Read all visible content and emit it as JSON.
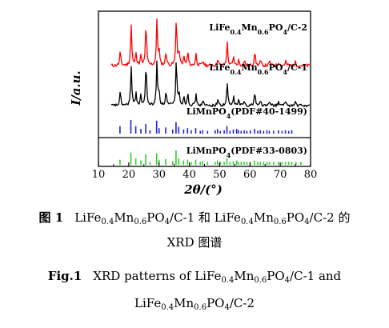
{
  "chart_data": {
    "type": "line",
    "xlabel": "2θ/(°)",
    "ylabel": "I/a.u.",
    "xlim": [
      10,
      80
    ],
    "xticks": [
      10,
      20,
      30,
      40,
      50,
      60,
      70,
      80
    ],
    "grid": false,
    "series": [
      {
        "name": "LiFe0.4Mn0.6PO4/C-2",
        "label_parts": [
          [
            "LiFe",
            ""
          ],
          [
            "0.4",
            "sub"
          ],
          [
            "Mn",
            ""
          ],
          [
            "0.6",
            "sub"
          ],
          [
            "PO",
            ""
          ],
          [
            "4",
            "sub"
          ],
          [
            "/C-2",
            ""
          ]
        ],
        "color": "#ff0000",
        "kind": "pattern",
        "peaks": [
          {
            "x": 17.2,
            "h": 0.28
          },
          {
            "x": 20.8,
            "h": 0.85
          },
          {
            "x": 22.4,
            "h": 0.28
          },
          {
            "x": 24.0,
            "h": 0.2
          },
          {
            "x": 25.7,
            "h": 0.9
          },
          {
            "x": 29.3,
            "h": 0.92
          },
          {
            "x": 30.0,
            "h": 0.3
          },
          {
            "x": 32.3,
            "h": 0.3
          },
          {
            "x": 35.7,
            "h": 1.0
          },
          {
            "x": 36.6,
            "h": 0.3
          },
          {
            "x": 38.2,
            "h": 0.18
          },
          {
            "x": 39.5,
            "h": 0.28
          },
          {
            "x": 42.2,
            "h": 0.24
          },
          {
            "x": 44.5,
            "h": 0.1
          },
          {
            "x": 49.4,
            "h": 0.14
          },
          {
            "x": 52.5,
            "h": 0.48
          },
          {
            "x": 54.6,
            "h": 0.18
          },
          {
            "x": 56.3,
            "h": 0.12
          },
          {
            "x": 58.2,
            "h": 0.1
          },
          {
            "x": 61.6,
            "h": 0.3
          },
          {
            "x": 63.5,
            "h": 0.1
          },
          {
            "x": 66.5,
            "h": 0.08
          },
          {
            "x": 69.5,
            "h": 0.08
          },
          {
            "x": 71.8,
            "h": 0.1
          },
          {
            "x": 75.0,
            "h": 0.07
          }
        ]
      },
      {
        "name": "LiFe0.4Mn0.6PO4/C-1",
        "label_parts": [
          [
            "LiFe",
            ""
          ],
          [
            "0.4",
            "sub"
          ],
          [
            "Mn",
            ""
          ],
          [
            "0.6",
            "sub"
          ],
          [
            "PO",
            ""
          ],
          [
            "4",
            "sub"
          ],
          [
            "/C-1",
            ""
          ]
        ],
        "color": "#000000",
        "kind": "pattern",
        "peaks": [
          {
            "x": 17.2,
            "h": 0.28
          },
          {
            "x": 20.8,
            "h": 0.85
          },
          {
            "x": 22.4,
            "h": 0.28
          },
          {
            "x": 24.0,
            "h": 0.2
          },
          {
            "x": 25.7,
            "h": 0.9
          },
          {
            "x": 29.3,
            "h": 0.92
          },
          {
            "x": 30.0,
            "h": 0.3
          },
          {
            "x": 32.3,
            "h": 0.3
          },
          {
            "x": 35.7,
            "h": 1.0
          },
          {
            "x": 36.6,
            "h": 0.3
          },
          {
            "x": 38.2,
            "h": 0.18
          },
          {
            "x": 39.5,
            "h": 0.28
          },
          {
            "x": 42.2,
            "h": 0.24
          },
          {
            "x": 44.5,
            "h": 0.1
          },
          {
            "x": 49.4,
            "h": 0.14
          },
          {
            "x": 52.5,
            "h": 0.48
          },
          {
            "x": 54.6,
            "h": 0.18
          },
          {
            "x": 56.3,
            "h": 0.12
          },
          {
            "x": 58.2,
            "h": 0.1
          },
          {
            "x": 61.6,
            "h": 0.3
          },
          {
            "x": 63.5,
            "h": 0.1
          },
          {
            "x": 66.5,
            "h": 0.08
          },
          {
            "x": 69.5,
            "h": 0.08
          },
          {
            "x": 71.8,
            "h": 0.1
          },
          {
            "x": 75.0,
            "h": 0.07
          }
        ]
      },
      {
        "name": "LiMnPO4(PDF#40-1499)",
        "label_parts": [
          [
            "LiMnPO",
            ""
          ],
          [
            "4",
            "sub"
          ],
          [
            "(PDF#40-1499)",
            ""
          ]
        ],
        "color": "#2222cc",
        "kind": "sticks",
        "peaks": [
          {
            "x": 17.1,
            "h": 0.55
          },
          {
            "x": 20.7,
            "h": 1.0
          },
          {
            "x": 22.3,
            "h": 0.55
          },
          {
            "x": 24.0,
            "h": 0.35
          },
          {
            "x": 25.6,
            "h": 0.7
          },
          {
            "x": 27.0,
            "h": 0.25
          },
          {
            "x": 29.2,
            "h": 0.95
          },
          {
            "x": 30.0,
            "h": 0.4
          },
          {
            "x": 32.2,
            "h": 0.45
          },
          {
            "x": 34.5,
            "h": 0.3
          },
          {
            "x": 35.6,
            "h": 0.85
          },
          {
            "x": 36.5,
            "h": 0.5
          },
          {
            "x": 38.1,
            "h": 0.3
          },
          {
            "x": 39.4,
            "h": 0.4
          },
          {
            "x": 40.6,
            "h": 0.25
          },
          {
            "x": 42.1,
            "h": 0.4
          },
          {
            "x": 43.6,
            "h": 0.2
          },
          {
            "x": 44.4,
            "h": 0.25
          },
          {
            "x": 46.0,
            "h": 0.2
          },
          {
            "x": 48.5,
            "h": 0.25
          },
          {
            "x": 49.3,
            "h": 0.35
          },
          {
            "x": 50.2,
            "h": 0.2
          },
          {
            "x": 51.5,
            "h": 0.25
          },
          {
            "x": 52.4,
            "h": 0.55
          },
          {
            "x": 53.4,
            "h": 0.2
          },
          {
            "x": 54.5,
            "h": 0.3
          },
          {
            "x": 55.6,
            "h": 0.35
          },
          {
            "x": 56.2,
            "h": 0.25
          },
          {
            "x": 57.1,
            "h": 0.2
          },
          {
            "x": 58.1,
            "h": 0.25
          },
          {
            "x": 59.0,
            "h": 0.2
          },
          {
            "x": 60.1,
            "h": 0.25
          },
          {
            "x": 61.5,
            "h": 0.35
          },
          {
            "x": 62.6,
            "h": 0.2
          },
          {
            "x": 63.4,
            "h": 0.25
          },
          {
            "x": 64.5,
            "h": 0.2
          },
          {
            "x": 65.6,
            "h": 0.25
          },
          {
            "x": 66.4,
            "h": 0.2
          },
          {
            "x": 67.8,
            "h": 0.2
          },
          {
            "x": 69.4,
            "h": 0.25
          },
          {
            "x": 70.6,
            "h": 0.2
          },
          {
            "x": 71.7,
            "h": 0.25
          },
          {
            "x": 72.8,
            "h": 0.2
          },
          {
            "x": 73.8,
            "h": 0.25
          }
        ]
      },
      {
        "name": "LiMnPO4(PDF#33-0803)",
        "label_parts": [
          [
            "LiMnPO",
            ""
          ],
          [
            "4",
            "sub"
          ],
          [
            "(PDF#33-0803)",
            ""
          ]
        ],
        "color": "#33cc33",
        "kind": "sticks",
        "peaks": [
          {
            "x": 17.1,
            "h": 0.35
          },
          {
            "x": 20.7,
            "h": 0.85
          },
          {
            "x": 22.3,
            "h": 0.45
          },
          {
            "x": 24.0,
            "h": 0.3
          },
          {
            "x": 25.6,
            "h": 0.75
          },
          {
            "x": 27.0,
            "h": 0.2
          },
          {
            "x": 29.2,
            "h": 0.8
          },
          {
            "x": 30.0,
            "h": 0.35
          },
          {
            "x": 32.2,
            "h": 0.4
          },
          {
            "x": 34.5,
            "h": 0.25
          },
          {
            "x": 35.6,
            "h": 1.0
          },
          {
            "x": 36.5,
            "h": 0.45
          },
          {
            "x": 38.1,
            "h": 0.3
          },
          {
            "x": 39.4,
            "h": 0.35
          },
          {
            "x": 40.6,
            "h": 0.2
          },
          {
            "x": 42.1,
            "h": 0.35
          },
          {
            "x": 43.6,
            "h": 0.2
          },
          {
            "x": 44.4,
            "h": 0.25
          },
          {
            "x": 46.0,
            "h": 0.2
          },
          {
            "x": 48.5,
            "h": 0.2
          },
          {
            "x": 49.3,
            "h": 0.3
          },
          {
            "x": 50.2,
            "h": 0.2
          },
          {
            "x": 51.5,
            "h": 0.2
          },
          {
            "x": 52.4,
            "h": 0.45
          },
          {
            "x": 53.4,
            "h": 0.2
          },
          {
            "x": 54.5,
            "h": 0.25
          },
          {
            "x": 55.6,
            "h": 0.3
          },
          {
            "x": 56.2,
            "h": 0.2
          },
          {
            "x": 57.1,
            "h": 0.2
          },
          {
            "x": 58.1,
            "h": 0.2
          },
          {
            "x": 59.0,
            "h": 0.2
          },
          {
            "x": 60.1,
            "h": 0.2
          },
          {
            "x": 61.5,
            "h": 0.3
          },
          {
            "x": 62.6,
            "h": 0.2
          },
          {
            "x": 63.4,
            "h": 0.2
          },
          {
            "x": 64.5,
            "h": 0.2
          },
          {
            "x": 65.6,
            "h": 0.2
          },
          {
            "x": 66.4,
            "h": 0.2
          },
          {
            "x": 67.8,
            "h": 0.2
          },
          {
            "x": 69.4,
            "h": 0.2
          },
          {
            "x": 70.6,
            "h": 0.2
          },
          {
            "x": 71.7,
            "h": 0.2
          },
          {
            "x": 72.8,
            "h": 0.2
          },
          {
            "x": 73.8,
            "h": 0.2
          },
          {
            "x": 75.2,
            "h": 0.2
          },
          {
            "x": 76.8,
            "h": 0.2
          }
        ]
      }
    ]
  },
  "caption": {
    "zh_number": "图 1",
    "zh_parts": [
      [
        "LiFe",
        ""
      ],
      [
        "0.4",
        "sub"
      ],
      [
        "Mn",
        ""
      ],
      [
        "0.6",
        "sub"
      ],
      [
        "PO",
        ""
      ],
      [
        "4",
        "sub"
      ],
      [
        "/C-1 和 LiFe",
        ""
      ],
      [
        "0.4",
        "sub"
      ],
      [
        "Mn",
        ""
      ],
      [
        "0.6",
        "sub"
      ],
      [
        "PO",
        ""
      ],
      [
        "4",
        "sub"
      ],
      [
        "/C-2 的",
        ""
      ]
    ],
    "zh_line2": "XRD 图谱",
    "en_number": "Fig.1",
    "en_parts": [
      [
        "XRD patterns of LiFe",
        ""
      ],
      [
        "0.4",
        "sub"
      ],
      [
        "Mn",
        ""
      ],
      [
        "0.6",
        "sub"
      ],
      [
        "PO",
        ""
      ],
      [
        "4",
        "sub"
      ],
      [
        "/C-1 and",
        ""
      ]
    ],
    "en_line2_parts": [
      [
        "LiFe",
        ""
      ],
      [
        "0.4",
        "sub"
      ],
      [
        "Mn",
        ""
      ],
      [
        "0.6",
        "sub"
      ],
      [
        "PO",
        ""
      ],
      [
        "4",
        "sub"
      ],
      [
        "/C-2",
        ""
      ]
    ]
  }
}
